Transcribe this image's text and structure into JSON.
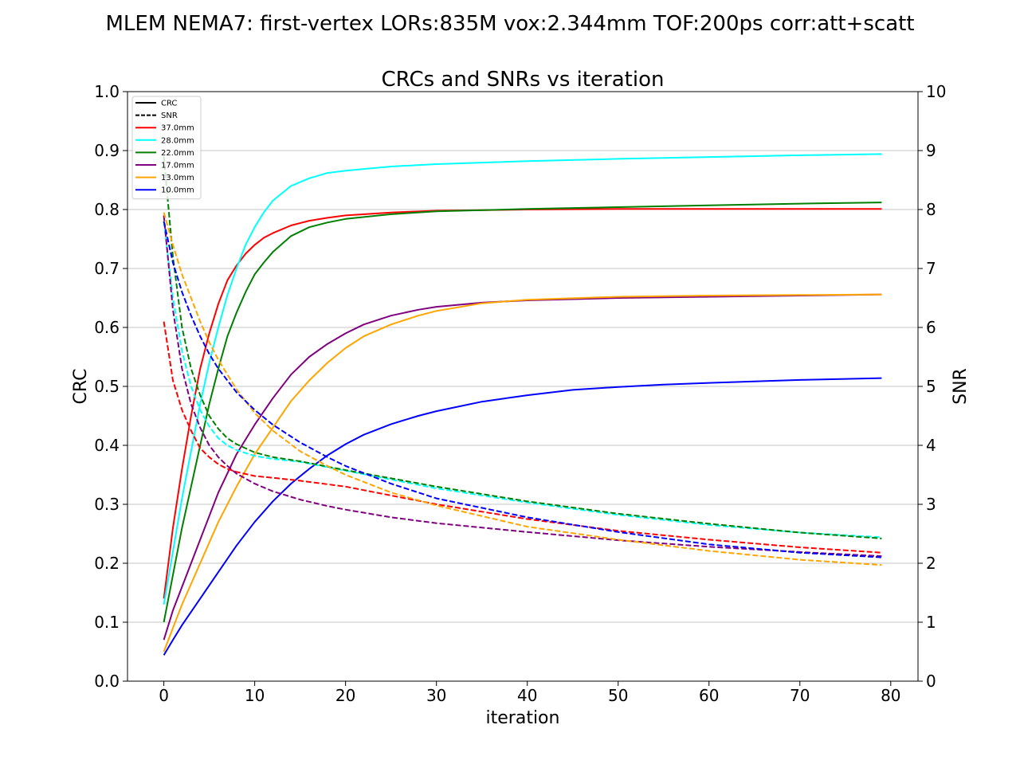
{
  "figure": {
    "suptitle": "MLEM NEMA7: first-vertex LORs:835M vox:2.344mm TOF:200ps corr:att+scatt"
  },
  "chart_data": {
    "type": "line",
    "title": "CRCs and SNRs vs iteration",
    "xlabel": "iteration",
    "ylabel": "CRC",
    "y2label": "SNR",
    "xlim": [
      -4,
      83
    ],
    "ylim": [
      0.0,
      1.0
    ],
    "y2lim": [
      0,
      10
    ],
    "xticks": [
      "0",
      "10",
      "20",
      "30",
      "40",
      "50",
      "60",
      "70",
      "80"
    ],
    "yticks": [
      "0.0",
      "0.1",
      "0.2",
      "0.3",
      "0.4",
      "0.5",
      "0.6",
      "0.7",
      "0.8",
      "0.9",
      "1.0"
    ],
    "y2ticks": [
      "0",
      "1",
      "2",
      "3",
      "4",
      "5",
      "6",
      "7",
      "8",
      "9",
      "10"
    ],
    "grid": "horizontal",
    "legend_position": "top-left",
    "legend": [
      {
        "label": "CRC",
        "color": "#000000",
        "style": "solid"
      },
      {
        "label": "SNR",
        "color": "#000000",
        "style": "dashed"
      },
      {
        "label": "37.0mm",
        "color": "#ff0000",
        "style": "solid"
      },
      {
        "label": "28.0mm",
        "color": "#00ffff",
        "style": "solid"
      },
      {
        "label": "22.0mm",
        "color": "#008000",
        "style": "solid"
      },
      {
        "label": "17.0mm",
        "color": "#800080",
        "style": "solid"
      },
      {
        "label": "13.0mm",
        "color": "#ffa500",
        "style": "solid"
      },
      {
        "label": "10.0mm",
        "color": "#0000ff",
        "style": "solid"
      }
    ],
    "series": [
      {
        "name": "37.0mm",
        "metric": "CRC",
        "axis": "left",
        "color": "#ff0000",
        "style": "solid",
        "x": [
          0,
          1,
          2,
          3,
          4,
          5,
          6,
          7,
          8,
          9,
          10,
          11,
          12,
          14,
          16,
          18,
          20,
          25,
          30,
          40,
          50,
          60,
          70,
          79
        ],
        "y": [
          0.14,
          0.26,
          0.36,
          0.45,
          0.53,
          0.59,
          0.64,
          0.68,
          0.705,
          0.725,
          0.74,
          0.752,
          0.76,
          0.773,
          0.781,
          0.786,
          0.79,
          0.795,
          0.798,
          0.8,
          0.801,
          0.801,
          0.801,
          0.801
        ]
      },
      {
        "name": "28.0mm",
        "metric": "CRC",
        "axis": "left",
        "color": "#00ffff",
        "style": "solid",
        "x": [
          0,
          1,
          2,
          3,
          4,
          5,
          6,
          7,
          8,
          9,
          10,
          11,
          12,
          14,
          16,
          18,
          20,
          25,
          30,
          40,
          50,
          60,
          70,
          79
        ],
        "y": [
          0.13,
          0.22,
          0.31,
          0.39,
          0.47,
          0.54,
          0.6,
          0.655,
          0.7,
          0.74,
          0.77,
          0.795,
          0.815,
          0.84,
          0.853,
          0.862,
          0.866,
          0.873,
          0.877,
          0.882,
          0.886,
          0.889,
          0.892,
          0.894
        ]
      },
      {
        "name": "22.0mm",
        "metric": "CRC",
        "axis": "left",
        "color": "#008000",
        "style": "solid",
        "x": [
          0,
          1,
          2,
          3,
          4,
          5,
          6,
          7,
          8,
          9,
          10,
          11,
          12,
          14,
          16,
          18,
          20,
          25,
          30,
          40,
          50,
          60,
          70,
          79
        ],
        "y": [
          0.1,
          0.18,
          0.26,
          0.33,
          0.4,
          0.47,
          0.53,
          0.585,
          0.625,
          0.66,
          0.69,
          0.71,
          0.728,
          0.755,
          0.77,
          0.778,
          0.784,
          0.792,
          0.797,
          0.801,
          0.804,
          0.807,
          0.81,
          0.812
        ]
      },
      {
        "name": "17.0mm",
        "metric": "CRC",
        "axis": "left",
        "color": "#800080",
        "style": "solid",
        "x": [
          0,
          1,
          2,
          4,
          6,
          8,
          10,
          12,
          14,
          16,
          18,
          20,
          22,
          25,
          28,
          30,
          35,
          40,
          50,
          60,
          70,
          79
        ],
        "y": [
          0.07,
          0.12,
          0.16,
          0.24,
          0.32,
          0.385,
          0.435,
          0.48,
          0.52,
          0.55,
          0.572,
          0.59,
          0.605,
          0.62,
          0.63,
          0.635,
          0.642,
          0.646,
          0.65,
          0.652,
          0.654,
          0.656
        ]
      },
      {
        "name": "13.0mm",
        "metric": "CRC",
        "axis": "left",
        "color": "#ffa500",
        "style": "solid",
        "x": [
          0,
          1,
          2,
          4,
          6,
          8,
          10,
          12,
          14,
          16,
          18,
          20,
          22,
          25,
          28,
          30,
          35,
          40,
          50,
          60,
          70,
          79
        ],
        "y": [
          0.05,
          0.09,
          0.13,
          0.2,
          0.27,
          0.33,
          0.385,
          0.43,
          0.475,
          0.51,
          0.54,
          0.565,
          0.585,
          0.605,
          0.62,
          0.628,
          0.641,
          0.647,
          0.652,
          0.654,
          0.655,
          0.656
        ]
      },
      {
        "name": "10.0mm",
        "metric": "CRC",
        "axis": "left",
        "color": "#0000ff",
        "style": "solid",
        "x": [
          0,
          1,
          2,
          4,
          6,
          8,
          10,
          12,
          14,
          16,
          18,
          20,
          22,
          25,
          28,
          30,
          35,
          40,
          45,
          50,
          55,
          60,
          70,
          79
        ],
        "y": [
          0.044,
          0.07,
          0.095,
          0.14,
          0.185,
          0.23,
          0.27,
          0.305,
          0.335,
          0.36,
          0.383,
          0.402,
          0.418,
          0.436,
          0.45,
          0.458,
          0.474,
          0.485,
          0.494,
          0.499,
          0.503,
          0.506,
          0.511,
          0.514
        ]
      },
      {
        "name": "37.0mm",
        "metric": "SNR",
        "axis": "right",
        "color": "#ff0000",
        "style": "dashed",
        "x": [
          0,
          1,
          2,
          3,
          4,
          5,
          6,
          7,
          8,
          10,
          12,
          15,
          20,
          25,
          30,
          40,
          50,
          60,
          70,
          79
        ],
        "y": [
          6.1,
          5.1,
          4.6,
          4.25,
          3.95,
          3.8,
          3.68,
          3.6,
          3.55,
          3.48,
          3.45,
          3.4,
          3.3,
          3.15,
          3.0,
          2.75,
          2.55,
          2.4,
          2.27,
          2.18
        ]
      },
      {
        "name": "28.0mm",
        "metric": "SNR",
        "axis": "right",
        "color": "#00ffff",
        "style": "dashed",
        "x": [
          0,
          1,
          2,
          3,
          4,
          5,
          6,
          7,
          8,
          10,
          12,
          15,
          20,
          25,
          30,
          40,
          50,
          60,
          70,
          79
        ],
        "y": [
          7.8,
          6.5,
          5.6,
          5.0,
          4.6,
          4.32,
          4.12,
          4.0,
          3.92,
          3.82,
          3.77,
          3.72,
          3.57,
          3.42,
          3.27,
          3.03,
          2.82,
          2.65,
          2.52,
          2.44
        ]
      },
      {
        "name": "22.0mm",
        "metric": "SNR",
        "axis": "right",
        "color": "#008000",
        "style": "dashed",
        "x": [
          0,
          1,
          2,
          3,
          4,
          5,
          6,
          7,
          8,
          10,
          12,
          15,
          20,
          25,
          30,
          40,
          50,
          60,
          70,
          79
        ],
        "y": [
          8.9,
          7.2,
          6.0,
          5.3,
          4.85,
          4.5,
          4.28,
          4.12,
          4.02,
          3.88,
          3.8,
          3.73,
          3.58,
          3.44,
          3.3,
          3.05,
          2.84,
          2.67,
          2.52,
          2.42
        ]
      },
      {
        "name": "17.0mm",
        "metric": "SNR",
        "axis": "right",
        "color": "#800080",
        "style": "dashed",
        "x": [
          0,
          1,
          2,
          3,
          4,
          5,
          6,
          7,
          8,
          10,
          12,
          15,
          18,
          20,
          25,
          30,
          40,
          50,
          60,
          70,
          79
        ],
        "y": [
          7.9,
          6.3,
          5.3,
          4.7,
          4.3,
          4.0,
          3.8,
          3.65,
          3.52,
          3.35,
          3.22,
          3.08,
          2.97,
          2.91,
          2.78,
          2.68,
          2.53,
          2.39,
          2.28,
          2.19,
          2.12
        ]
      },
      {
        "name": "13.0mm",
        "metric": "SNR",
        "axis": "right",
        "color": "#ffa500",
        "style": "dashed",
        "x": [
          0,
          1,
          2,
          3,
          4,
          5,
          6,
          7,
          8,
          10,
          12,
          15,
          18,
          20,
          25,
          30,
          40,
          50,
          60,
          70,
          79
        ],
        "y": [
          7.95,
          7.4,
          6.9,
          6.5,
          6.1,
          5.75,
          5.45,
          5.2,
          4.95,
          4.55,
          4.25,
          3.9,
          3.65,
          3.5,
          3.2,
          2.98,
          2.62,
          2.4,
          2.21,
          2.06,
          1.97
        ]
      },
      {
        "name": "10.0mm",
        "metric": "SNR",
        "axis": "right",
        "color": "#0000ff",
        "style": "dashed",
        "x": [
          0,
          1,
          2,
          3,
          4,
          5,
          6,
          7,
          8,
          10,
          12,
          15,
          18,
          20,
          25,
          30,
          40,
          50,
          60,
          70,
          79
        ],
        "y": [
          7.8,
          7.1,
          6.6,
          6.2,
          5.85,
          5.55,
          5.3,
          5.1,
          4.9,
          4.6,
          4.35,
          4.05,
          3.8,
          3.65,
          3.35,
          3.1,
          2.78,
          2.53,
          2.32,
          2.18,
          2.1
        ]
      }
    ]
  }
}
